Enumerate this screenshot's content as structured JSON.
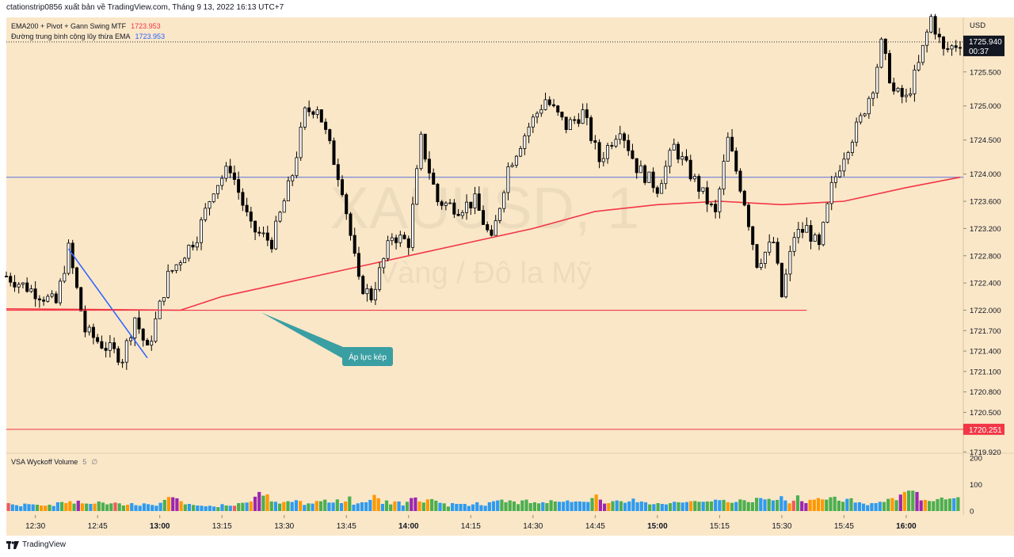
{
  "header": {
    "publisher_text": "ctationstrip0856 xuất bản về TradingView.com, Tháng 9 13, 2022 16:13 UTC+7"
  },
  "indicators": [
    {
      "name": "EMA200 + Pivot + Gann Swing MTF",
      "value": "1723.953",
      "color": "#f23645"
    },
    {
      "name": "Đường trung bình cộng lũy thừa EMA",
      "value": "1723.953",
      "color": "#2962ff"
    }
  ],
  "watermark": {
    "symbol": "XAUUSD, 1",
    "description": "Vàng / Đô la Mỹ"
  },
  "annotation": {
    "text": "Áp lực kép",
    "color": "#3a9fa3"
  },
  "price_axis": {
    "currency": "USD",
    "last_price": "1725.940",
    "countdown": "00:37",
    "level_label": "1720.251",
    "level_color": "#f23645",
    "ticks": [
      "1725.500",
      "1725.000",
      "1724.500",
      "1724.000",
      "1723.600",
      "1723.200",
      "1722.800",
      "1722.400",
      "1722.000",
      "1721.700",
      "1721.400",
      "1721.100",
      "1720.800",
      "1720.500",
      "1719.920"
    ]
  },
  "volume_axis": {
    "ticks": [
      "200",
      "100",
      "0"
    ]
  },
  "vsa": {
    "name": "VSA Wyckoff Volume",
    "param1": "5",
    "param2": "∅"
  },
  "time_axis": {
    "labels": [
      {
        "text": "12:30",
        "bold": false
      },
      {
        "text": "12:45",
        "bold": false
      },
      {
        "text": "13:00",
        "bold": true
      },
      {
        "text": "13:15",
        "bold": false
      },
      {
        "text": "13:30",
        "bold": false
      },
      {
        "text": "13:45",
        "bold": false
      },
      {
        "text": "14:00",
        "bold": true
      },
      {
        "text": "14:15",
        "bold": false
      },
      {
        "text": "14:30",
        "bold": false
      },
      {
        "text": "14:45",
        "bold": false
      },
      {
        "text": "15:00",
        "bold": true
      },
      {
        "text": "15:15",
        "bold": false
      },
      {
        "text": "15:30",
        "bold": false
      },
      {
        "text": "15:45",
        "bold": false
      },
      {
        "text": "16:00",
        "bold": true
      }
    ]
  },
  "footer": {
    "brand": "TradingView"
  },
  "chart_data": {
    "type": "candlestick",
    "symbol": "XAUUSD",
    "interval_minutes": 1,
    "x_range": [
      "12:23",
      "16:13"
    ],
    "ylim": [
      1719.9,
      1726.3
    ],
    "volume_ylim": [
      0,
      200
    ],
    "colors": {
      "background": "#fae7c8",
      "up_candle": "#ffffff",
      "down_candle": "#000000",
      "ema200": "#f23645",
      "ema": "#6b7fd7",
      "volume_blue": "#2e9bf0",
      "volume_green": "#4caf50",
      "volume_orange": "#ff9800",
      "volume_red": "#f05b5b",
      "volume_purple": "#9c27b0"
    },
    "key_prices": {
      "last": 1725.94,
      "ema": 1723.953,
      "support_level": 1722.0,
      "level_line": 1720.251
    },
    "anchors": [
      {
        "t": "12:23",
        "p": 1722.5
      },
      {
        "t": "12:29",
        "p": 1722.3
      },
      {
        "t": "12:35",
        "p": 1722.1
      },
      {
        "t": "12:38",
        "p": 1722.9
      },
      {
        "t": "12:42",
        "p": 1721.7
      },
      {
        "t": "12:46",
        "p": 1721.5
      },
      {
        "t": "12:51",
        "p": 1721.3
      },
      {
        "t": "12:54",
        "p": 1721.9
      },
      {
        "t": "12:57",
        "p": 1721.4
      },
      {
        "t": "13:02",
        "p": 1722.5
      },
      {
        "t": "13:09",
        "p": 1723.1
      },
      {
        "t": "13:13",
        "p": 1723.8
      },
      {
        "t": "13:17",
        "p": 1724.1
      },
      {
        "t": "13:22",
        "p": 1723.2
      },
      {
        "t": "13:27",
        "p": 1723.0
      },
      {
        "t": "13:32",
        "p": 1724.0
      },
      {
        "t": "13:35",
        "p": 1724.9
      },
      {
        "t": "13:38",
        "p": 1725.0
      },
      {
        "t": "13:44",
        "p": 1723.8
      },
      {
        "t": "13:48",
        "p": 1722.4
      },
      {
        "t": "13:51",
        "p": 1722.2
      },
      {
        "t": "13:56",
        "p": 1723.1
      },
      {
        "t": "14:00",
        "p": 1723.0
      },
      {
        "t": "14:03",
        "p": 1724.5
      },
      {
        "t": "14:07",
        "p": 1723.6
      },
      {
        "t": "14:12",
        "p": 1723.5
      },
      {
        "t": "14:16",
        "p": 1723.6
      },
      {
        "t": "14:20",
        "p": 1723.0
      },
      {
        "t": "14:24",
        "p": 1724.1
      },
      {
        "t": "14:29",
        "p": 1724.7
      },
      {
        "t": "14:33",
        "p": 1725.1
      },
      {
        "t": "14:38",
        "p": 1724.7
      },
      {
        "t": "14:42",
        "p": 1724.9
      },
      {
        "t": "14:46",
        "p": 1724.2
      },
      {
        "t": "14:51",
        "p": 1724.7
      },
      {
        "t": "14:55",
        "p": 1724.1
      },
      {
        "t": "15:00",
        "p": 1723.8
      },
      {
        "t": "15:04",
        "p": 1724.4
      },
      {
        "t": "15:09",
        "p": 1723.9
      },
      {
        "t": "15:14",
        "p": 1723.4
      },
      {
        "t": "15:17",
        "p": 1724.5
      },
      {
        "t": "15:21",
        "p": 1723.6
      },
      {
        "t": "15:24",
        "p": 1722.7
      },
      {
        "t": "15:28",
        "p": 1723.0
      },
      {
        "t": "15:30",
        "p": 1722.2
      },
      {
        "t": "15:33",
        "p": 1723.1
      },
      {
        "t": "15:36",
        "p": 1723.2
      },
      {
        "t": "15:39",
        "p": 1722.9
      },
      {
        "t": "15:42",
        "p": 1723.8
      },
      {
        "t": "15:45",
        "p": 1724.3
      },
      {
        "t": "15:49",
        "p": 1724.8
      },
      {
        "t": "15:52",
        "p": 1725.3
      },
      {
        "t": "15:54",
        "p": 1725.9
      },
      {
        "t": "15:57",
        "p": 1725.2
      },
      {
        "t": "16:00",
        "p": 1725.1
      },
      {
        "t": "16:03",
        "p": 1725.6
      },
      {
        "t": "16:06",
        "p": 1726.3
      },
      {
        "t": "16:09",
        "p": 1725.8
      },
      {
        "t": "16:13",
        "p": 1725.94
      }
    ],
    "ema200": [
      {
        "t": "12:23",
        "p": 1722.02
      },
      {
        "t": "13:05",
        "p": 1722.0
      },
      {
        "t": "13:15",
        "p": 1722.2
      },
      {
        "t": "13:30",
        "p": 1722.4
      },
      {
        "t": "13:45",
        "p": 1722.6
      },
      {
        "t": "14:00",
        "p": 1722.8
      },
      {
        "t": "14:15",
        "p": 1723.0
      },
      {
        "t": "14:30",
        "p": 1723.2
      },
      {
        "t": "14:45",
        "p": 1723.45
      },
      {
        "t": "15:00",
        "p": 1723.55
      },
      {
        "t": "15:15",
        "p": 1723.6
      },
      {
        "t": "15:30",
        "p": 1723.55
      },
      {
        "t": "15:45",
        "p": 1723.6
      },
      {
        "t": "16:00",
        "p": 1723.8
      },
      {
        "t": "16:13",
        "p": 1723.953
      }
    ],
    "drawings": [
      {
        "kind": "trend_line",
        "color": "#3366ff",
        "from": {
          "t": "12:38",
          "p": 1722.9
        },
        "to": {
          "t": "12:57",
          "p": 1721.3
        }
      },
      {
        "kind": "horizontal_ray",
        "color": "#f23645",
        "price": 1722.0,
        "from": "12:23",
        "to": "15:36"
      }
    ],
    "volume": {
      "values": [
        30,
        25,
        22,
        18,
        28,
        26,
        25,
        24,
        21,
        20,
        24,
        19,
        33,
        34,
        30,
        37,
        28,
        39,
        29,
        28,
        27,
        28,
        36,
        32,
        25,
        29,
        32,
        29,
        21,
        24,
        30,
        22,
        20,
        29,
        26,
        23,
        20,
        31,
        42,
        53,
        52,
        48,
        37,
        25,
        27,
        23,
        21,
        20,
        18,
        20,
        17,
        15,
        26,
        21,
        20,
        20,
        30,
        31,
        32,
        36,
        54,
        72,
        58,
        63,
        36,
        35,
        28,
        34,
        37,
        34,
        41,
        38,
        23,
        29,
        28,
        38,
        37,
        43,
        32,
        32,
        44,
        30,
        36,
        55,
        24,
        29,
        33,
        33,
        42,
        61,
        48,
        27,
        40,
        25,
        36,
        36,
        21,
        35,
        49,
        51,
        36,
        32,
        44,
        45,
        39,
        31,
        29,
        17,
        30,
        27,
        27,
        27,
        19,
        25,
        33,
        22,
        20,
        33,
        37,
        40,
        43,
        33,
        40,
        36,
        26,
        40,
        43,
        30,
        33,
        29,
        33,
        30,
        41,
        36,
        35,
        35,
        40,
        34,
        36,
        36,
        35,
        34,
        49,
        62,
        43,
        28,
        30,
        37,
        40,
        37,
        31,
        36,
        47,
        33,
        36,
        33,
        25,
        26,
        30,
        27,
        25,
        30,
        35,
        33,
        32,
        34,
        37,
        38,
        35,
        35,
        36,
        36,
        43,
        41,
        42,
        33,
        31,
        34,
        44,
        41,
        34,
        33,
        50,
        49,
        44,
        46,
        40,
        42,
        56,
        40,
        29,
        39,
        59,
        37,
        30,
        42,
        43,
        49,
        44,
        43,
        52,
        54,
        39,
        35,
        46,
        48,
        32,
        33,
        28,
        22,
        30,
        30,
        35,
        34,
        46,
        49,
        41,
        62,
        72,
        77,
        77,
        72,
        40,
        42,
        38,
        37,
        45,
        51,
        44,
        47,
        48,
        52
      ],
      "colors": [
        "red",
        "blue",
        "blue",
        "blue",
        "blue",
        "blue",
        "blue",
        "green",
        "orange",
        "orange",
        "green",
        "blue",
        "blue",
        "green",
        "orange",
        "orange",
        "green",
        "purple",
        "orange",
        "green",
        "blue",
        "orange",
        "green",
        "green",
        "green",
        "green",
        "red",
        "green",
        "green",
        "orange",
        "blue",
        "blue",
        "blue",
        "blue",
        "blue",
        "blue",
        "blue",
        "blue",
        "green",
        "orange",
        "purple",
        "purple",
        "orange",
        "green",
        "blue",
        "green",
        "blue",
        "blue",
        "blue",
        "blue",
        "blue",
        "green",
        "blue",
        "green",
        "blue",
        "red",
        "green",
        "green",
        "blue",
        "orange",
        "purple",
        "purple",
        "green",
        "orange",
        "green",
        "blue",
        "green",
        "orange",
        "green",
        "blue",
        "blue",
        "orange",
        "blue",
        "green",
        "blue",
        "orange",
        "green",
        "green",
        "blue",
        "blue",
        "green",
        "blue",
        "orange",
        "green",
        "blue",
        "blue",
        "blue",
        "blue",
        "blue",
        "orange",
        "orange",
        "blue",
        "green",
        "green",
        "orange",
        "blue",
        "blue",
        "green",
        "purple",
        "purple",
        "orange",
        "green",
        "orange",
        "green",
        "green",
        "blue",
        "green",
        "green",
        "blue",
        "blue",
        "blue",
        "blue",
        "blue",
        "blue",
        "blue",
        "blue",
        "blue",
        "blue",
        "blue",
        "blue",
        "green",
        "green",
        "green",
        "green",
        "green",
        "green",
        "green",
        "green",
        "green",
        "green",
        "blue",
        "green",
        "green",
        "green",
        "blue",
        "blue",
        "blue",
        "blue",
        "blue",
        "blue",
        "blue",
        "blue",
        "green",
        "orange",
        "purple",
        "purple",
        "orange",
        "green",
        "blue",
        "green",
        "blue",
        "blue",
        "blue",
        "blue",
        "blue",
        "blue",
        "green",
        "blue",
        "green",
        "blue",
        "blue",
        "green",
        "blue",
        "green",
        "blue",
        "blue",
        "orange",
        "green",
        "green",
        "blue",
        "green",
        "green",
        "blue",
        "blue",
        "green",
        "orange",
        "green",
        "blue",
        "green",
        "green",
        "green",
        "green",
        "green",
        "blue",
        "blue",
        "green",
        "blue",
        "green",
        "blue",
        "blue",
        "orange",
        "red",
        "green",
        "purple",
        "purple",
        "orange",
        "orange",
        "orange",
        "orange",
        "green",
        "green",
        "green",
        "green",
        "green",
        "blue",
        "green",
        "blue",
        "blue",
        "blue",
        "blue",
        "blue",
        "blue",
        "blue",
        "green",
        "green",
        "orange",
        "green",
        "purple",
        "orange",
        "green",
        "green",
        "purple",
        "purple",
        "orange",
        "green",
        "green",
        "green",
        "green",
        "green",
        "green",
        "blue",
        "green",
        "blue"
      ]
    }
  }
}
